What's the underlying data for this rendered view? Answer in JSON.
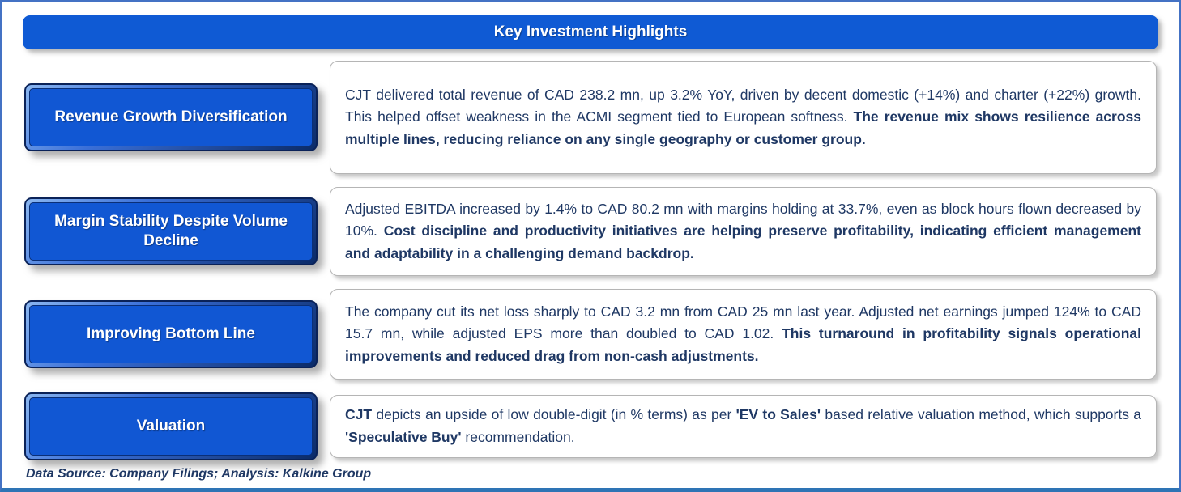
{
  "page": {
    "title": "Key Investment Highlights",
    "footer": "Data Source: Company Filings; Analysis: Kalkine Group"
  },
  "colors": {
    "header_blue": "#0F5AD4",
    "label_blue": "#1157D3",
    "label_border_navy": "#0A2258",
    "frame_border_blue": "#4472C4",
    "frame_bottom_blue": "#2E74B5",
    "body_text_navy": "#1F3864",
    "label_text": "#FFFFFF"
  },
  "rows": [
    {
      "label": "Revenue Growth Diversification",
      "segments": [
        {
          "text": "CJT delivered total revenue of CAD 238.2 mn, up 3.2% YoY, driven by decent domestic (+14%) and charter (+22%) growth. This helped offset weakness in the ACMI segment tied to European softness. ",
          "bold": false
        },
        {
          "text": "The revenue mix shows resilience across multiple lines, reducing reliance on any single geography or customer group.",
          "bold": true
        }
      ]
    },
    {
      "label": "Margin Stability Despite Volume Decline",
      "segments": [
        {
          "text": "Adjusted EBITDA increased by 1.4% to CAD 80.2 mn with margins holding at 33.7%, even as block hours flown decreased by 10%. ",
          "bold": false
        },
        {
          "text": "Cost discipline and productivity initiatives are helping preserve profitability, indicating efficient management and adaptability in a challenging demand backdrop.",
          "bold": true
        }
      ]
    },
    {
      "label": "Improving Bottom Line",
      "segments": [
        {
          "text": "The company cut its net loss sharply to CAD 3.2 mn from CAD 25 mn last year. Adjusted net earnings jumped 124% to CAD 15.7 mn, while adjusted EPS more than doubled to CAD 1.02. ",
          "bold": false
        },
        {
          "text": "This turnaround in profitability signals operational improvements and reduced drag from non-cash adjustments.",
          "bold": true
        }
      ]
    },
    {
      "label": "Valuation",
      "segments": [
        {
          "text": "CJT",
          "bold": true
        },
        {
          "text": " depicts an upside of low double-digit (in % terms) as per ",
          "bold": false
        },
        {
          "text": "'EV to Sales'",
          "bold": true
        },
        {
          "text": " based relative valuation method, which supports a ",
          "bold": false
        },
        {
          "text": "'Speculative Buy'",
          "bold": true
        },
        {
          "text": " recommendation.",
          "bold": false
        }
      ]
    }
  ]
}
